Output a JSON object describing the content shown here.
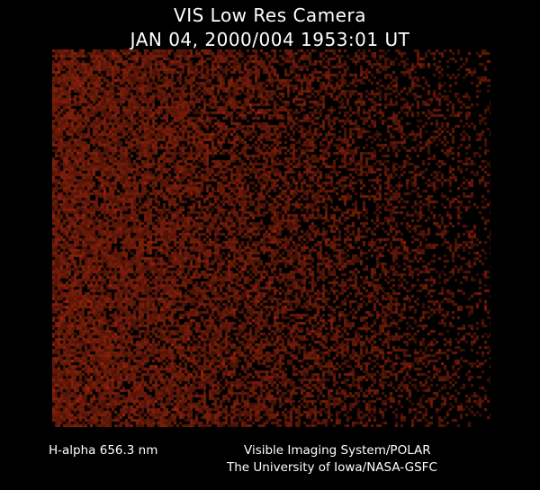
{
  "header": {
    "title": "VIS Low Res Camera",
    "timestamp": "JAN 04, 2000/004 1953:01 UT"
  },
  "image": {
    "colormap": "red",
    "base_color": "#7a1e0a"
  },
  "footer": {
    "filter": "H-alpha 656.3 nm",
    "instrument": "Visible Imaging System/POLAR",
    "institution": "The University of Iowa/NASA-GSFC"
  }
}
